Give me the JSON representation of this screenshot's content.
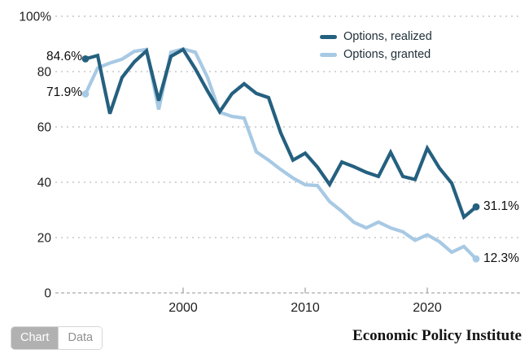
{
  "chart_data": {
    "type": "line",
    "x": [
      1992,
      1993,
      1994,
      1995,
      1996,
      1997,
      1998,
      1999,
      2000,
      2001,
      2002,
      2003,
      2004,
      2005,
      2006,
      2007,
      2008,
      2009,
      2010,
      2011,
      2012,
      2013,
      2014,
      2015,
      2016,
      2017,
      2018,
      2019,
      2020,
      2021,
      2022,
      2023,
      2024
    ],
    "series": [
      {
        "id": "realized",
        "name": "Options, realized",
        "color": "#25607f",
        "values": [
          84.6,
          85.8,
          64.8,
          77.9,
          83.5,
          87.5,
          69.5,
          85.5,
          88.0,
          81.0,
          73.0,
          65.5,
          72.0,
          75.6,
          72.1,
          70.6,
          57.8,
          48.0,
          50.5,
          45.5,
          39.2,
          47.3,
          45.6,
          43.6,
          42.1,
          50.8,
          42.1,
          41.0,
          52.3,
          45.1,
          39.7,
          27.4,
          31.1
        ]
      },
      {
        "id": "granted",
        "name": "Options, granted",
        "color": "#a7c9e4",
        "values": [
          71.9,
          81.3,
          83.1,
          84.5,
          87.3,
          88.0,
          66.3,
          87.0,
          88.2,
          87.0,
          77.9,
          65.3,
          63.8,
          63.2,
          51.0,
          48.0,
          44.6,
          41.5,
          39.1,
          38.8,
          33.0,
          29.5,
          25.5,
          23.5,
          25.6,
          23.5,
          22.1,
          19.0,
          21.0,
          18.5,
          14.7,
          16.8,
          12.3
        ]
      }
    ],
    "xlim": [
      1992,
      2024
    ],
    "ylim": [
      0,
      100
    ],
    "grid": "horizontal-dotted",
    "legend_position": "top-right",
    "y_ticks": [
      {
        "value": 100,
        "label": "100%"
      },
      {
        "value": 80,
        "label": "80"
      },
      {
        "value": 60,
        "label": "60"
      },
      {
        "value": 40,
        "label": "40"
      },
      {
        "value": 20,
        "label": "20"
      },
      {
        "value": 0,
        "label": "0"
      }
    ],
    "x_ticks": [
      {
        "value": 2000,
        "label": "2000"
      },
      {
        "value": 2010,
        "label": "2010"
      },
      {
        "value": 2020,
        "label": "2020"
      }
    ],
    "annotations": {
      "start_realized": "84.6%",
      "start_granted": "71.9%",
      "end_realized": "31.1%",
      "end_granted": "12.3%"
    }
  },
  "footer": {
    "chart_tab": "Chart",
    "data_tab": "Data",
    "attribution": "Economic Policy Institute"
  }
}
